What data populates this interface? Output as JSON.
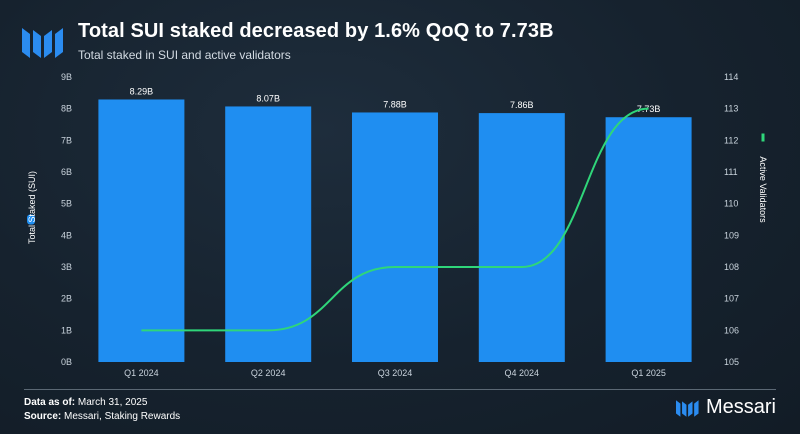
{
  "header": {
    "title": "Total SUI staked decreased by 1.6% QoQ to 7.73B",
    "subtitle": "Total staked in SUI and active validators"
  },
  "footer": {
    "date_label": "Data as of:",
    "date_value": "March 31, 2025",
    "source_label": "Source:",
    "source_value": "Messari, Staking Rewards",
    "brand": "Messari"
  },
  "colors": {
    "bar": "#1f8ef1",
    "line": "#2fd67a",
    "background": "#16222e",
    "text": "#ffffff"
  },
  "chart_data": {
    "type": "bar",
    "categories": [
      "Q1 2024",
      "Q2 2024",
      "Q3 2024",
      "Q4 2024",
      "Q1 2025"
    ],
    "series": [
      {
        "name": "Total Staked (SUI)",
        "type": "bar",
        "axis": "left",
        "values": [
          8.29,
          8.07,
          7.88,
          7.86,
          7.73
        ],
        "data_labels": [
          "8.29B",
          "8.07B",
          "7.88B",
          "7.86B",
          "7.73B"
        ]
      },
      {
        "name": "Active Validators",
        "type": "line",
        "axis": "right",
        "values": [
          106,
          106,
          108,
          108,
          113
        ]
      }
    ],
    "y_left": {
      "label": "Total Staked (SUI)",
      "range": [
        0,
        9
      ],
      "ticks": [
        "0B",
        "1B",
        "2B",
        "3B",
        "4B",
        "5B",
        "6B",
        "7B",
        "8B",
        "9B"
      ]
    },
    "y_right": {
      "label": "Active Validators",
      "range": [
        105,
        114
      ],
      "ticks": [
        "105",
        "106",
        "107",
        "108",
        "109",
        "110",
        "111",
        "112",
        "113",
        "114"
      ]
    },
    "legend_position": "sides",
    "grid": false
  }
}
